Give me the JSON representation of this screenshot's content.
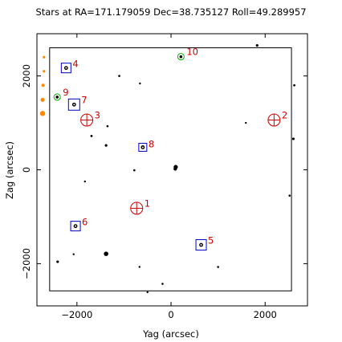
{
  "chart_data": {
    "type": "scatter",
    "title": "Stars at RA=171.179059 Dec=38.735127 Roll=49.289957",
    "xlabel": "Yag (arcsec)",
    "ylabel": "Zag (arcsec)",
    "xlim": [
      -2850,
      2900
    ],
    "ylim": [
      -2900,
      2900
    ],
    "x_ticks": [
      {
        "value": -2000,
        "label": "−2000"
      },
      {
        "value": 0,
        "label": "0"
      },
      {
        "value": 2000,
        "label": "2000"
      }
    ],
    "y_ticks": [
      {
        "value": -2000,
        "label": "−2000"
      },
      {
        "value": 0,
        "label": "0"
      },
      {
        "value": 2000,
        "label": "2000"
      }
    ],
    "ccd_box": {
      "y_min": -2580,
      "y_max": 2560,
      "z_min": -2580,
      "z_max": 2600
    },
    "colors": {
      "acq": "#0000cc",
      "guide": "#00aa00",
      "fid": "#cc0000",
      "spoiler": "#000000",
      "label": "#cc0000",
      "offchip": "#ff8800"
    },
    "catalog_stars": [
      {
        "x": 1830,
        "z": 2650,
        "r": 1.6
      },
      {
        "x": -1100,
        "z": 2000,
        "r": 1.3
      },
      {
        "x": -660,
        "z": 1840,
        "r": 1.2
      },
      {
        "x": 2620,
        "z": 1800,
        "r": 1.4
      },
      {
        "x": -1350,
        "z": 930,
        "r": 1.3
      },
      {
        "x": -1690,
        "z": 720,
        "r": 1.4
      },
      {
        "x": 1590,
        "z": 1000,
        "r": 1.2
      },
      {
        "x": 2600,
        "z": 660,
        "r": 1.6
      },
      {
        "x": -1380,
        "z": 520,
        "r": 1.6
      },
      {
        "x": -780,
        "z": -10,
        "r": 1.3
      },
      {
        "x": 100,
        "z": 60,
        "r": 2.6
      },
      {
        "x": 90,
        "z": 20,
        "r": 2.2
      },
      {
        "x": -1830,
        "z": -250,
        "r": 1.2
      },
      {
        "x": 2520,
        "z": -550,
        "r": 1.3
      },
      {
        "x": -1380,
        "z": -1790,
        "r": 2.8
      },
      {
        "x": -2070,
        "z": -1800,
        "r": 1.2
      },
      {
        "x": -2410,
        "z": -1960,
        "r": 1.6
      },
      {
        "x": -670,
        "z": -2070,
        "r": 1.2
      },
      {
        "x": 1000,
        "z": -2070,
        "r": 1.3
      },
      {
        "x": -180,
        "z": -2430,
        "r": 1.3
      },
      {
        "x": -500,
        "z": -2610,
        "r": 1.2
      }
    ],
    "offchip_stars": [
      {
        "x": -2700,
        "z": 2400,
        "r": 1.6
      },
      {
        "x": -2700,
        "z": 2100,
        "r": 1.6
      },
      {
        "x": -2720,
        "z": 1800,
        "r": 2.0
      },
      {
        "x": -2730,
        "z": 1490,
        "r": 2.5
      },
      {
        "x": -2730,
        "z": 1200,
        "r": 3.2
      }
    ],
    "acq_stars": [
      {
        "label": "4",
        "x": -2230,
        "z": 2170,
        "box": 12
      },
      {
        "label": "7",
        "x": -2060,
        "z": 1390,
        "box": 14
      },
      {
        "label": "8",
        "x": -600,
        "z": 480,
        "box": 10
      },
      {
        "label": "6",
        "x": -2030,
        "z": -1200,
        "box": 12
      },
      {
        "label": "5",
        "x": 640,
        "z": -1600,
        "box": 13
      }
    ],
    "guide_stars": [
      {
        "label": "9",
        "x": -2420,
        "z": 1550
      },
      {
        "label": "10",
        "x": 210,
        "z": 2410
      }
    ],
    "fid_lights": [
      {
        "label": "1",
        "x": -730,
        "z": -820
      },
      {
        "label": "2",
        "x": 2190,
        "z": 1060
      },
      {
        "label": "3",
        "x": -1790,
        "z": 1060
      }
    ]
  }
}
